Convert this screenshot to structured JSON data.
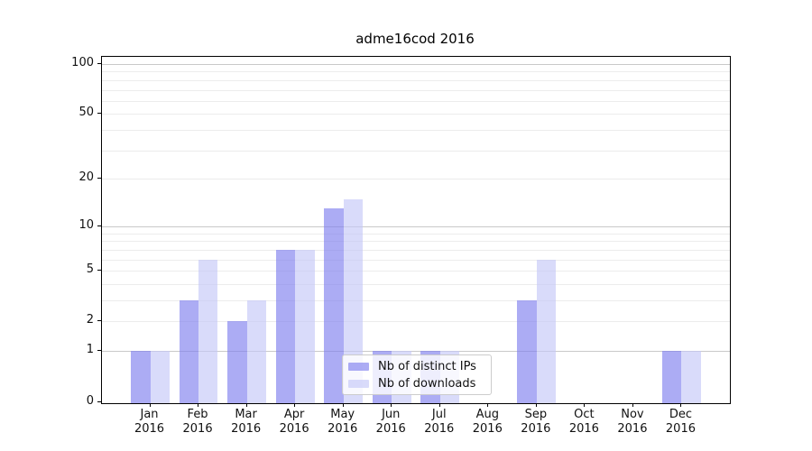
{
  "chart_data": {
    "type": "bar",
    "title": "adme16cod 2016",
    "y_scale": "log1p",
    "categories": [
      "Jan\n2016",
      "Feb\n2016",
      "Mar\n2016",
      "Apr\n2016",
      "May\n2016",
      "Jun\n2016",
      "Jul\n2016",
      "Aug\n2016",
      "Sep\n2016",
      "Oct\n2016",
      "Nov\n2016",
      "Dec\n2016"
    ],
    "series": [
      {
        "name": "Nb of distinct IPs",
        "color": "#8080ee",
        "alpha": 0.65,
        "values": [
          1,
          3,
          2,
          7,
          13,
          1,
          1,
          0,
          3,
          0,
          0,
          1
        ]
      },
      {
        "name": "Nb of downloads",
        "color": "#c4c7f7",
        "alpha": 0.65,
        "values": [
          1,
          6,
          3,
          7,
          15,
          1,
          1,
          0,
          6,
          0,
          0,
          1
        ]
      }
    ],
    "yticks": [
      0,
      1,
      2,
      5,
      10,
      20,
      50,
      100
    ],
    "major_gridlines": [
      1,
      10,
      100
    ],
    "minor_gridlines": [
      2,
      3,
      4,
      5,
      6,
      7,
      8,
      9,
      20,
      30,
      40,
      50,
      60,
      70,
      80,
      90
    ],
    "ylim": [
      0,
      110
    ],
    "grid": true,
    "legend_position": "lower center"
  },
  "colors": {
    "background": "#ffffff",
    "axis": "#000000",
    "text": "#111111",
    "major_grid": "#c9c9c9",
    "minor_grid": "#ececec",
    "legend_border": "#cccccc",
    "bar_ips_apparent": "#aaaaf6",
    "bar_downloads_apparent": "#d8daf8"
  }
}
